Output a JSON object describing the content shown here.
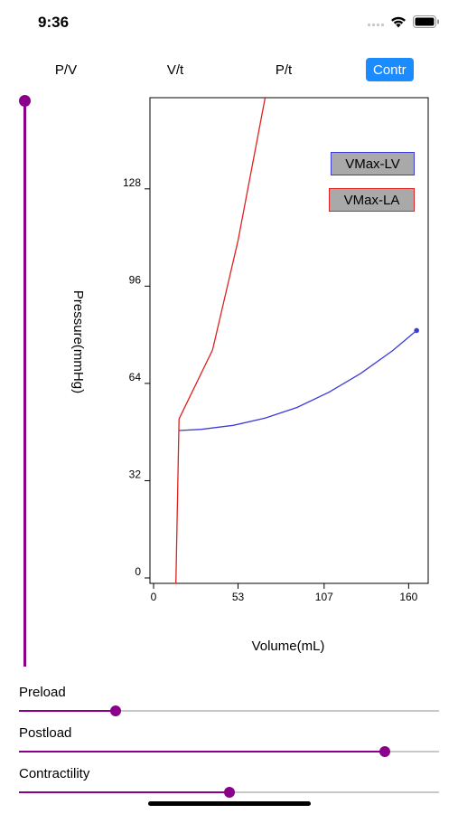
{
  "status_bar": {
    "time": "9:36",
    "icons": [
      "signal-icon",
      "wifi-icon",
      "battery-icon"
    ]
  },
  "tabs": [
    {
      "label": "P/V",
      "active": false
    },
    {
      "label": "V/t",
      "active": false
    },
    {
      "label": "P/t",
      "active": false
    },
    {
      "label": "Contr",
      "active": true
    }
  ],
  "vertical_slider": {
    "value_fraction": 1.0
  },
  "legend": {
    "lv_label": "VMax-LV",
    "la_label": "VMax-LA"
  },
  "colors": {
    "accent": "#8b008b",
    "active_tab": "#1a8cff",
    "lv_curve": "#3b3bd9",
    "la_curve": "#e02020",
    "legend_fill": "#a9a9a9"
  },
  "sliders": [
    {
      "label": "Preload",
      "value_fraction": 0.23
    },
    {
      "label": "Postload",
      "value_fraction": 0.87
    },
    {
      "label": "Contractility",
      "value_fraction": 0.5
    }
  ],
  "chart_data": {
    "type": "line",
    "xlabel": "Volume(mL)",
    "ylabel": "Pressure(mmHg)",
    "xlim": [
      0,
      170
    ],
    "ylim": [
      0,
      158
    ],
    "xticks": [
      {
        "value": 0,
        "label": "0"
      },
      {
        "value": 53,
        "label": "53"
      },
      {
        "value": 107,
        "label": "107"
      },
      {
        "value": 160,
        "label": "160"
      }
    ],
    "yticks": [
      {
        "value": 0,
        "label": "0"
      },
      {
        "value": 32,
        "label": "32"
      },
      {
        "value": 64,
        "label": "64"
      },
      {
        "value": 96,
        "label": "96"
      },
      {
        "value": 128,
        "label": "128"
      }
    ],
    "grid": false,
    "series": [
      {
        "name": "VMax-LV",
        "color": "#3b3bd9",
        "points": [
          [
            16,
            48.5
          ],
          [
            30,
            48.9
          ],
          [
            50,
            50.2
          ],
          [
            70,
            52.6
          ],
          [
            90,
            56.1
          ],
          [
            110,
            61.1
          ],
          [
            130,
            67.3
          ],
          [
            150,
            74.8
          ],
          [
            165,
            81.4
          ]
        ],
        "end_marker": true
      },
      {
        "name": "VMax-LA",
        "color": "#e02020",
        "points": [
          [
            14,
            -2
          ],
          [
            16,
            52.3
          ],
          [
            37,
            75
          ],
          [
            53,
            111
          ],
          [
            70,
            158
          ]
        ],
        "end_marker": false
      }
    ]
  }
}
